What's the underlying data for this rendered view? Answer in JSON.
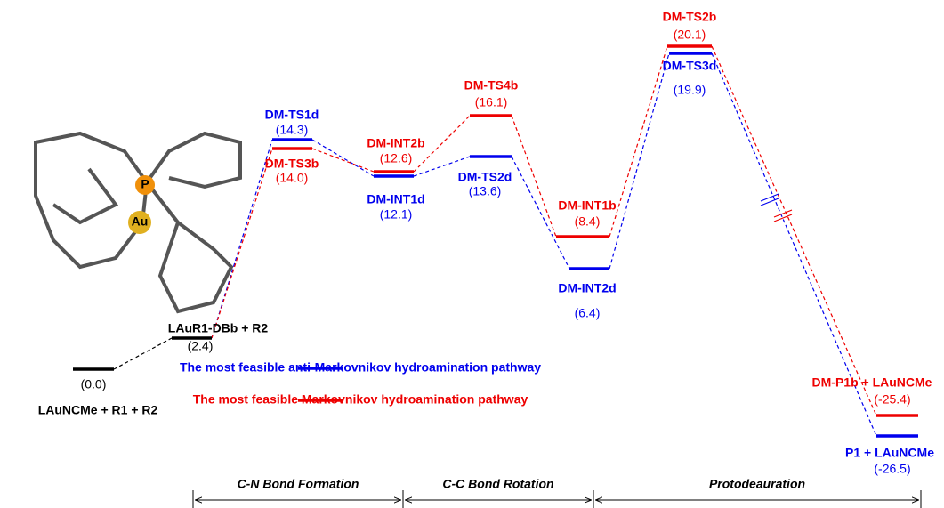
{
  "levels": [
    {
      "label": "LAuNCMe + R1 + R2",
      "energy": "(0.0)",
      "color": "#000000"
    },
    {
      "label": "LAuR1-DBb + R2",
      "energy": "(2.4)",
      "color": "#000000"
    },
    {
      "label": "DM-TS1d",
      "energy": "(14.3)",
      "color": "#0000ee"
    },
    {
      "label": "DM-TS3b",
      "energy": "(14.0)",
      "color": "#ee0000"
    },
    {
      "label": "DM-INT2b",
      "energy": "(12.6)",
      "color": "#ee0000"
    },
    {
      "label": "DM-INT1d",
      "energy": "(12.1)",
      "color": "#0000ee"
    },
    {
      "label": "DM-TS4b",
      "energy": "(16.1)",
      "color": "#ee0000"
    },
    {
      "label": "DM-TS2d",
      "energy": "(13.6)",
      "color": "#0000ee"
    },
    {
      "label": "DM-INT1b",
      "energy": "(8.4)",
      "color": "#ee0000"
    },
    {
      "label": "DM-INT2d",
      "energy": "(6.4)",
      "color": "#0000ee"
    },
    {
      "label": "DM-TS2b",
      "energy": "(20.1)",
      "color": "#ee0000"
    },
    {
      "label": "DM-TS3d",
      "energy": "(19.9)",
      "color": "#0000ee"
    },
    {
      "label": "DM-P1b + LAuNCMe",
      "energy": "(-25.4)",
      "color": "#ee0000"
    },
    {
      "label": "P1 + LAuNCMe",
      "energy": "(-26.5)",
      "color": "#0000ee"
    }
  ],
  "legend": [
    {
      "text": "The most feasible anti-Markovnikov hydroamination pathway",
      "color": "#0000ee"
    },
    {
      "text": "The most feasible Markovnikov hydroamination pathway",
      "color": "#ee0000"
    }
  ],
  "sections": [
    "C-N Bond Formation",
    "C-C Bond Rotation",
    "Protodeauration"
  ],
  "molecule": {
    "atoms": [
      "P",
      "Au"
    ]
  }
}
